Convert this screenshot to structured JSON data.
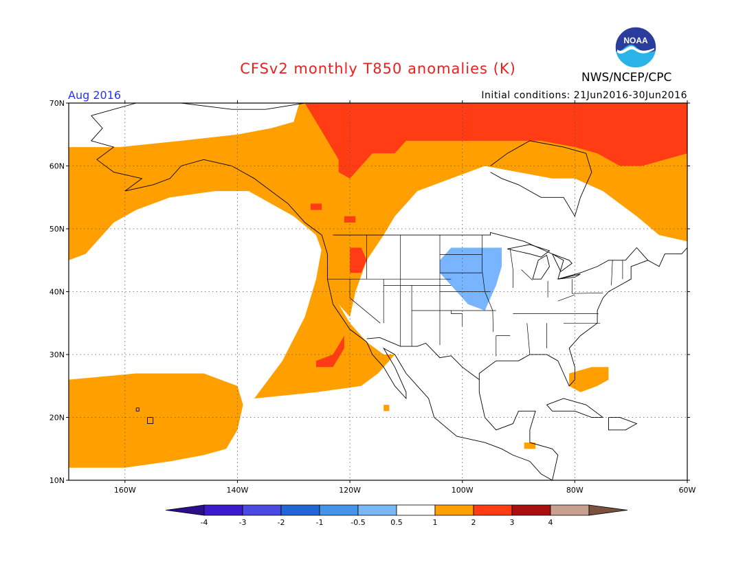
{
  "header": {
    "title": "CFSv2 monthly T850 anomalies (K)",
    "org": "NWS/NCEP/CPC",
    "logo_text": "NOAA",
    "month": "Aug 2016",
    "initial_conditions": "Initial conditions: 21Jun2016-30Jun2016"
  },
  "map": {
    "lon_range": [
      -170,
      -60
    ],
    "lat_range": [
      10,
      70
    ],
    "lat_ticks": [
      {
        "value": 70,
        "label": "70N"
      },
      {
        "value": 60,
        "label": "60N"
      },
      {
        "value": 50,
        "label": "50N"
      },
      {
        "value": 40,
        "label": "40N"
      },
      {
        "value": 30,
        "label": "30N"
      },
      {
        "value": 20,
        "label": "20N"
      },
      {
        "value": 10,
        "label": "10N"
      }
    ],
    "lon_ticks": [
      {
        "value": -160,
        "label": "160W"
      },
      {
        "value": -140,
        "label": "140W"
      },
      {
        "value": -120,
        "label": "120W"
      },
      {
        "value": -100,
        "label": "100W"
      },
      {
        "value": -80,
        "label": "80W"
      },
      {
        "value": -60,
        "label": "60W"
      }
    ],
    "gridlines": "dotted",
    "colors": {
      "anom_0_5_1": "#ffa000",
      "anom_1_2": "#ff3c14",
      "anom_neg1_neg0_5": "#78b4ff"
    },
    "anomaly_regions": [
      {
        "name": "warm-north-pacific-alaska",
        "level": "0.5-1",
        "polygon": [
          [
            -170,
            63
          ],
          [
            -161,
            63
          ],
          [
            -150,
            64
          ],
          [
            -140,
            65
          ],
          [
            -134,
            66
          ],
          [
            -130,
            67
          ],
          [
            -129,
            70
          ],
          [
            -60,
            70
          ],
          [
            -60,
            48
          ],
          [
            -65,
            49
          ],
          [
            -69,
            52
          ],
          [
            -75,
            56
          ],
          [
            -80,
            58
          ],
          [
            -84,
            58
          ],
          [
            -90,
            59
          ],
          [
            -96,
            60
          ],
          [
            -102,
            58
          ],
          [
            -108,
            56
          ],
          [
            -112,
            52
          ],
          [
            -114,
            49
          ],
          [
            -117,
            45
          ],
          [
            -119,
            40
          ],
          [
            -120,
            36
          ],
          [
            -123,
            39
          ],
          [
            -124,
            44
          ],
          [
            -126,
            49
          ],
          [
            -130,
            52
          ],
          [
            -138,
            56
          ],
          [
            -144,
            56
          ],
          [
            -152,
            55
          ],
          [
            -158,
            53
          ],
          [
            -162,
            51
          ],
          [
            -167,
            46
          ],
          [
            -170,
            45
          ]
        ]
      },
      {
        "name": "warm-eastern-pacific-band",
        "level": "0.5-1",
        "polygon": [
          [
            -126,
            49
          ],
          [
            -124,
            44
          ],
          [
            -122,
            38
          ],
          [
            -120,
            35
          ],
          [
            -117,
            32
          ],
          [
            -114,
            30
          ],
          [
            -112,
            30
          ],
          [
            -115,
            27
          ],
          [
            -118,
            25
          ],
          [
            -126,
            24
          ],
          [
            -137,
            23
          ],
          [
            -132,
            29
          ],
          [
            -128,
            36
          ],
          [
            -126,
            42
          ],
          [
            -125,
            47
          ]
        ]
      },
      {
        "name": "warm-hawaii-region",
        "level": "0.5-1",
        "polygon": [
          [
            -170,
            26
          ],
          [
            -158,
            27
          ],
          [
            -146,
            27
          ],
          [
            -140,
            25
          ],
          [
            -139,
            22
          ],
          [
            -140,
            18
          ],
          [
            -142,
            15
          ],
          [
            -146,
            14
          ],
          [
            -152,
            13
          ],
          [
            -160,
            12
          ],
          [
            -170,
            12
          ]
        ]
      },
      {
        "name": "warm-west-atlantic-spot",
        "level": "0.5-1",
        "polygon": [
          [
            -81,
            27
          ],
          [
            -77,
            28
          ],
          [
            -74,
            28
          ],
          [
            -74,
            26
          ],
          [
            -76,
            25
          ],
          [
            -79,
            24
          ],
          [
            -81,
            25
          ]
        ]
      },
      {
        "name": "warm-gulf-california-spot",
        "level": "0.5-1",
        "polygon": [
          [
            -114,
            22
          ],
          [
            -113,
            22
          ],
          [
            -113,
            21
          ],
          [
            -114,
            21
          ]
        ]
      },
      {
        "name": "warm-central-america-spot",
        "level": "0.5-1",
        "polygon": [
          [
            -89,
            16
          ],
          [
            -87,
            16
          ],
          [
            -87,
            15
          ],
          [
            -89,
            15
          ]
        ]
      },
      {
        "name": "warm-arctic-canada",
        "level": "1-2",
        "polygon": [
          [
            -128,
            70
          ],
          [
            -60,
            70
          ],
          [
            -60,
            62
          ],
          [
            -64,
            61
          ],
          [
            -68,
            60
          ],
          [
            -72,
            60
          ],
          [
            -76,
            62
          ],
          [
            -80,
            63
          ],
          [
            -86,
            64
          ],
          [
            -94,
            64
          ],
          [
            -102,
            64
          ],
          [
            -110,
            64
          ],
          [
            -112,
            62
          ],
          [
            -116,
            62
          ],
          [
            -118,
            60
          ],
          [
            -120,
            58
          ],
          [
            -122,
            59
          ],
          [
            -122,
            61
          ],
          [
            -124,
            64
          ],
          [
            -126,
            67
          ]
        ]
      },
      {
        "name": "warm-pacific-nw-spot",
        "level": "1-2",
        "polygon": [
          [
            -120,
            47
          ],
          [
            -118,
            47
          ],
          [
            -117,
            45
          ],
          [
            -118,
            43
          ],
          [
            -120,
            43
          ],
          [
            -120,
            45
          ]
        ]
      },
      {
        "name": "warm-northwest-spot",
        "level": "1-2",
        "polygon": [
          [
            -121,
            52
          ],
          [
            -119,
            52
          ],
          [
            -119,
            51
          ],
          [
            -121,
            51
          ]
        ]
      },
      {
        "name": "warm-yukon-spot",
        "level": "1-2",
        "polygon": [
          [
            -127,
            54
          ],
          [
            -125,
            54
          ],
          [
            -125,
            53
          ],
          [
            -127,
            53
          ]
        ]
      },
      {
        "name": "warm-baja-spot",
        "level": "1-2",
        "polygon": [
          [
            -126,
            29
          ],
          [
            -123,
            30
          ],
          [
            -121,
            33
          ],
          [
            -121,
            31
          ],
          [
            -123,
            28
          ],
          [
            -126,
            28
          ]
        ]
      },
      {
        "name": "cool-northern-plains",
        "level": "-1--0.5",
        "polygon": [
          [
            -104,
            45
          ],
          [
            -102,
            47
          ],
          [
            -96,
            47
          ],
          [
            -93,
            47
          ],
          [
            -93,
            44
          ],
          [
            -94,
            41
          ],
          [
            -96,
            37
          ],
          [
            -99,
            38
          ],
          [
            -102,
            41
          ],
          [
            -104,
            43
          ]
        ]
      }
    ],
    "state_labels": []
  },
  "colorbar": {
    "ticks": [
      "-4",
      "-3",
      "-2",
      "-1",
      "-0.5",
      "0.5",
      "1",
      "2",
      "3",
      "4"
    ],
    "colors": [
      "#3a1acb",
      "#4a4ae0",
      "#2266d6",
      "#4494ea",
      "#7ab8f5",
      "#ffffff",
      "#ffa000",
      "#ff3c14",
      "#a81010",
      "#c8a090"
    ],
    "end_low": "#2a0e8c",
    "end_high": "#7a5040"
  }
}
